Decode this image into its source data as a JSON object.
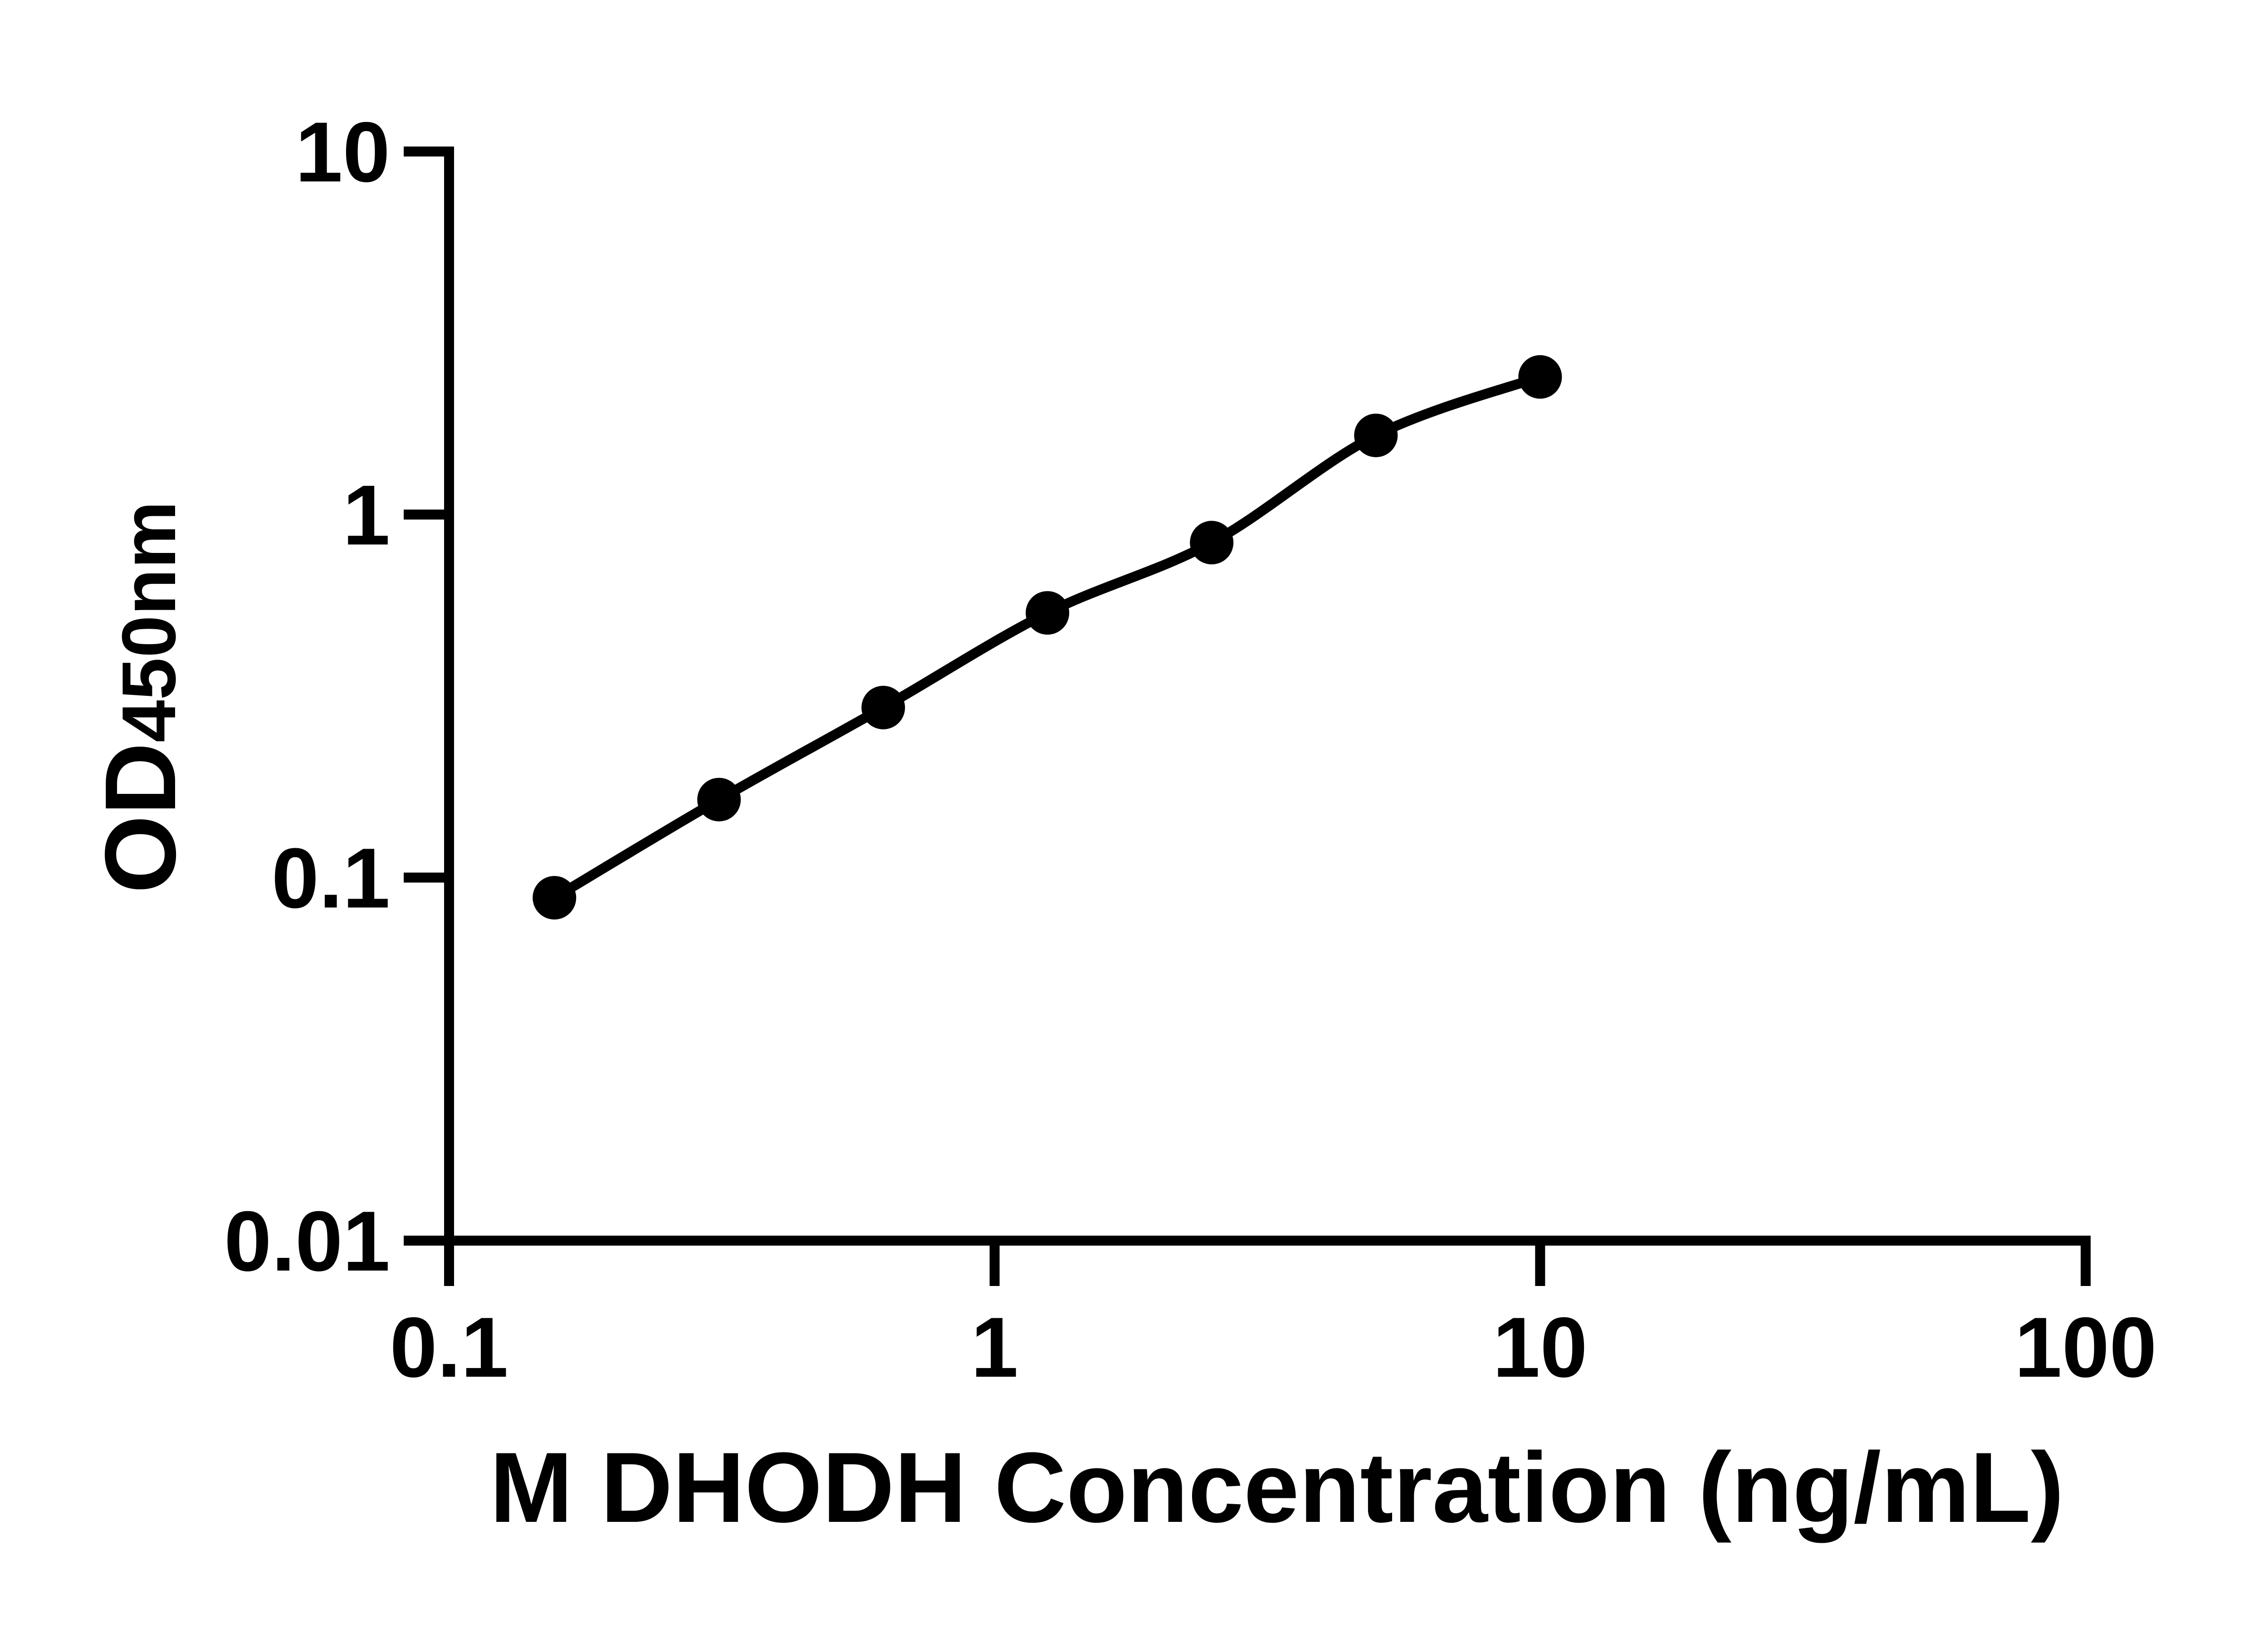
{
  "colors": {
    "ink": "#000000",
    "background": "#ffffff"
  },
  "chart_data": {
    "type": "scatter",
    "title": "",
    "xlabel": "M DHODH Concentration (ng/mL)",
    "ylabel": "OD450nm",
    "ylabel_main": "OD",
    "ylabel_subscript": "450nm",
    "x_scale": "log10",
    "y_scale": "log10",
    "xlim": [
      0.1,
      100
    ],
    "ylim": [
      0.01,
      10
    ],
    "grid": false,
    "legend": false,
    "x_ticks": [
      {
        "value": 0.1,
        "label": "0.1"
      },
      {
        "value": 1,
        "label": "1"
      },
      {
        "value": 10,
        "label": "10"
      },
      {
        "value": 100,
        "label": "100"
      }
    ],
    "y_ticks": [
      {
        "value": 10,
        "label": "10"
      },
      {
        "value": 1,
        "label": "1"
      },
      {
        "value": 0.1,
        "label": "0.1"
      },
      {
        "value": 0.01,
        "label": "0.01"
      }
    ],
    "series": [
      {
        "marker": "filled-circle",
        "line": "smooth-fit-curve",
        "color": "#000000",
        "points": [
          {
            "x": 0.156,
            "y": 0.088
          },
          {
            "x": 0.3125,
            "y": 0.164
          },
          {
            "x": 0.625,
            "y": 0.294
          },
          {
            "x": 1.25,
            "y": 0.536
          },
          {
            "x": 2.5,
            "y": 0.837
          },
          {
            "x": 5,
            "y": 1.652
          },
          {
            "x": 10,
            "y": 2.394
          }
        ]
      }
    ]
  }
}
